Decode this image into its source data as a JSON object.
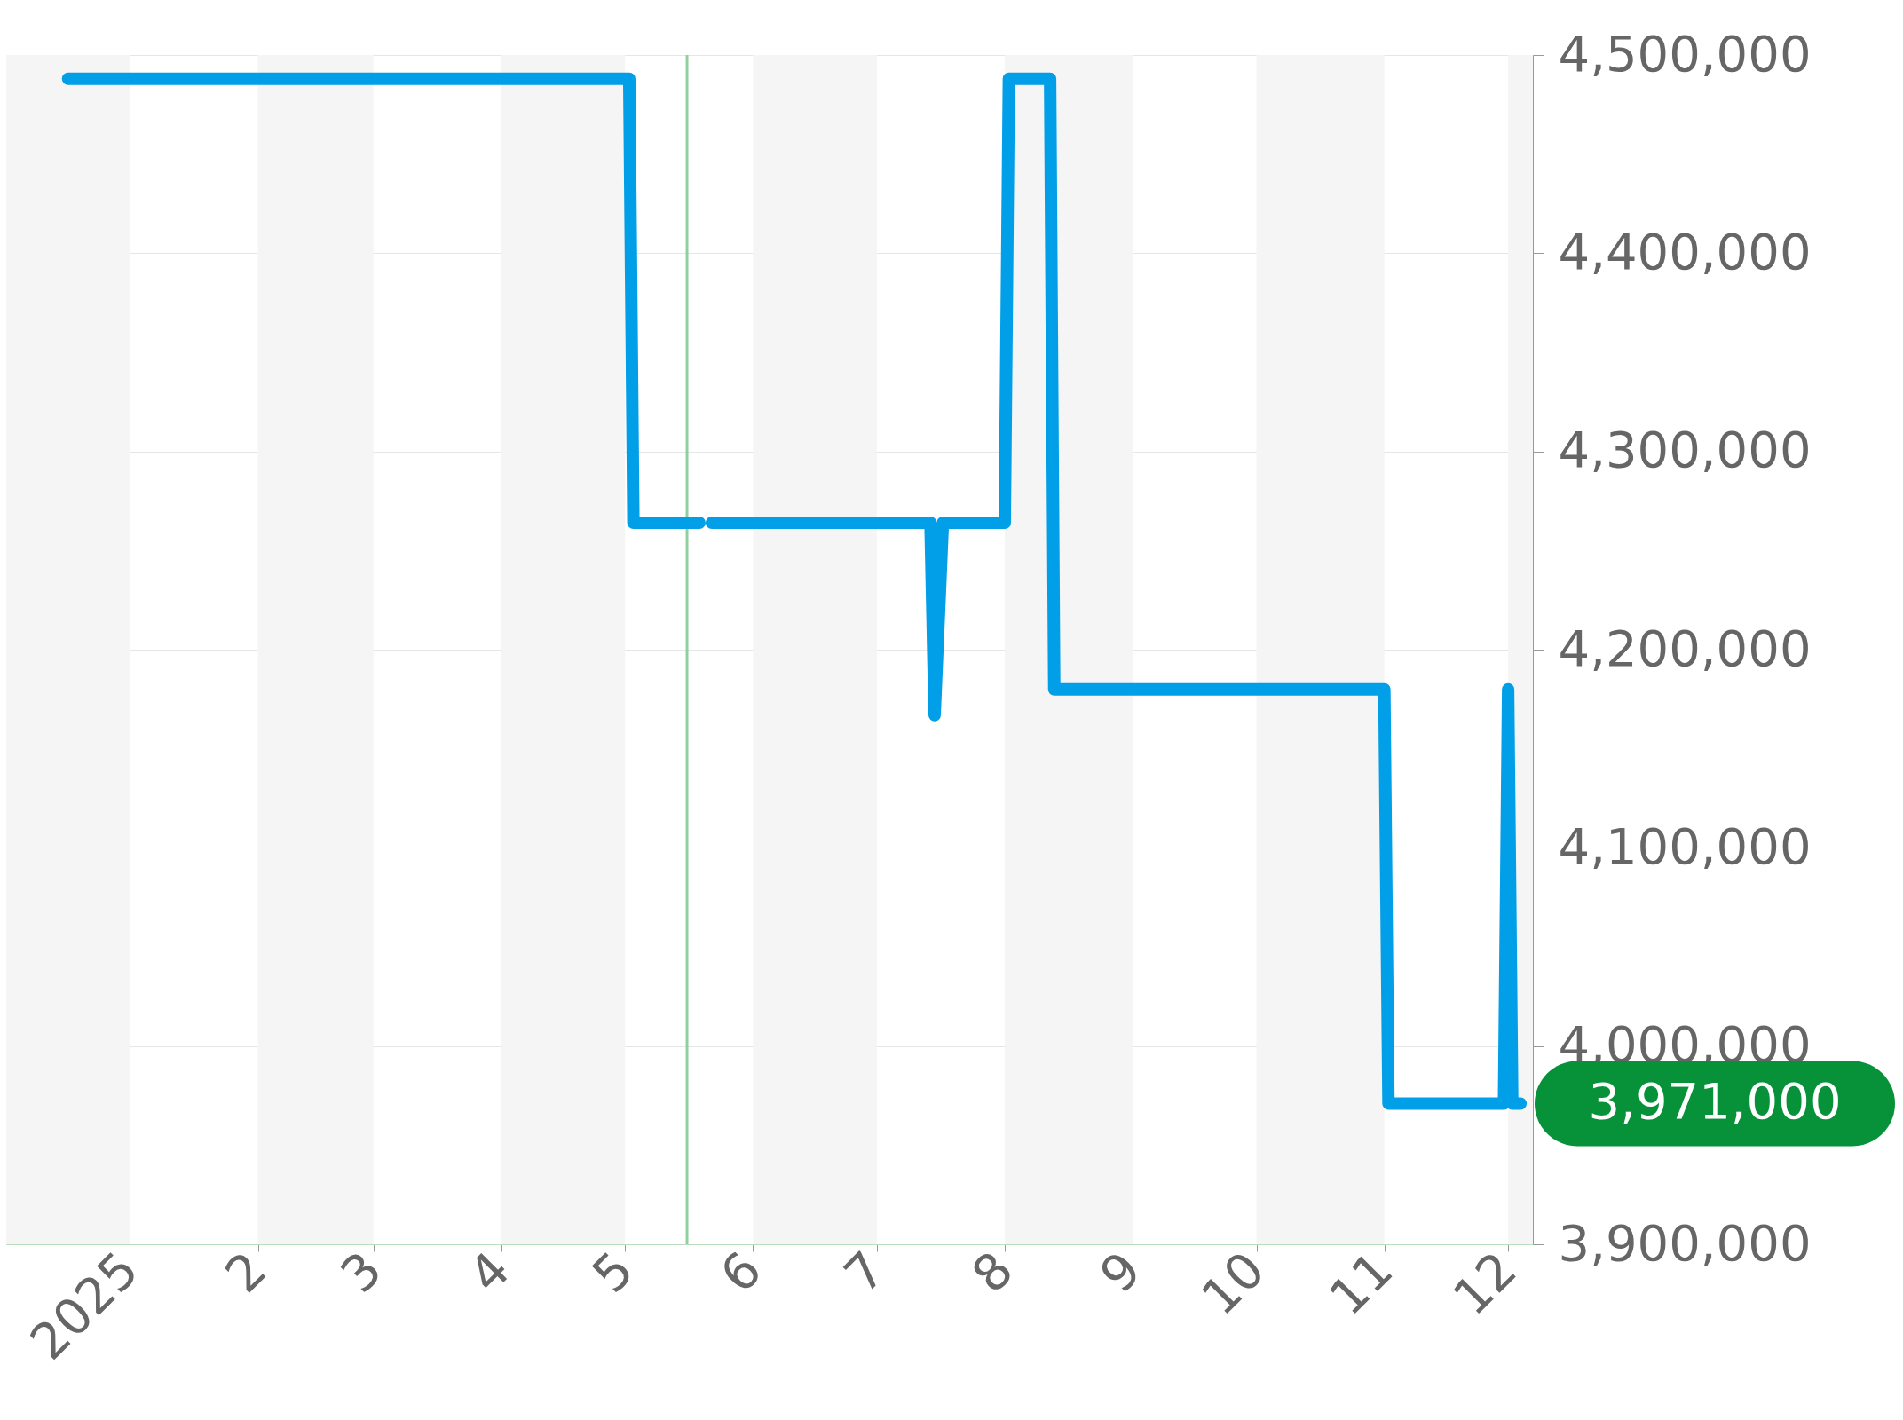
{
  "chart_data": {
    "type": "line",
    "x": [
      "2024-12-17",
      "2025-05-02",
      "2025-05-03",
      "2025-05-19",
      "2025-05-20",
      "2025-05-22",
      "2025-07-14",
      "2025-07-15",
      "2025-07-17",
      "2025-08-01",
      "2025-08-02",
      "2025-08-12",
      "2025-08-13",
      "2025-11-01",
      "2025-11-02",
      "2025-11-30",
      "2025-12-01",
      "2025-12-02",
      "2025-12-04"
    ],
    "series": [
      {
        "color": "#009fe8",
        "values": [
          4488000,
          4488000,
          4264000,
          4264000,
          null,
          4264000,
          4264000,
          4167000,
          4264000,
          4264000,
          4488000,
          4488000,
          4180000,
          4180000,
          3971000,
          3971000,
          4180000,
          3971000,
          3971000
        ]
      }
    ],
    "xlim": [
      "2024-12-02",
      "2025-12-07"
    ],
    "xticks": [
      {
        "value": "2025-01-01",
        "label": "2025"
      },
      {
        "value": "2025-02-01",
        "label": "2"
      },
      {
        "value": "2025-03-01",
        "label": "3"
      },
      {
        "value": "2025-04-01",
        "label": "4"
      },
      {
        "value": "2025-05-01",
        "label": "5"
      },
      {
        "value": "2025-06-01",
        "label": "6"
      },
      {
        "value": "2025-07-01",
        "label": "7"
      },
      {
        "value": "2025-08-01",
        "label": "8"
      },
      {
        "value": "2025-09-01",
        "label": "9"
      },
      {
        "value": "2025-10-01",
        "label": "10"
      },
      {
        "value": "2025-11-01",
        "label": "11"
      },
      {
        "value": "2025-12-01",
        "label": "12"
      }
    ],
    "ylim": [
      3900000,
      4500000
    ],
    "yticks": [
      {
        "value": 3900000,
        "label": "3,900,000"
      },
      {
        "value": 4000000,
        "label": "4,000,000"
      },
      {
        "value": 4100000,
        "label": "4,100,000"
      },
      {
        "value": 4200000,
        "label": "4,200,000"
      },
      {
        "value": 4300000,
        "label": "4,300,000"
      },
      {
        "value": 4400000,
        "label": "4,400,000"
      },
      {
        "value": 4500000,
        "label": "4,500,000"
      }
    ],
    "bands": [
      {
        "axis": "x",
        "from": "2024-12-02",
        "to": "2025-01-01",
        "color": "#f5f5f5"
      },
      {
        "axis": "x",
        "from": "2025-02-01",
        "to": "2025-03-01",
        "color": "#f5f5f5"
      },
      {
        "axis": "x",
        "from": "2025-04-01",
        "to": "2025-05-01",
        "color": "#f5f5f5"
      },
      {
        "axis": "x",
        "from": "2025-06-01",
        "to": "2025-07-01",
        "color": "#f5f5f5"
      },
      {
        "axis": "x",
        "from": "2025-08-01",
        "to": "2025-09-01",
        "color": "#f5f5f5"
      },
      {
        "axis": "x",
        "from": "2025-10-01",
        "to": "2025-11-01",
        "color": "#f5f5f5"
      },
      {
        "axis": "x",
        "from": "2025-12-01",
        "to": "2025-12-07",
        "color": "#f5f5f5"
      }
    ],
    "ref_lines": [
      {
        "axis": "x",
        "value": "2025-05-16",
        "color": "#8fd19e"
      }
    ],
    "annotations": [
      "3,971,000"
    ],
    "grid": "y",
    "marker": "none",
    "line_style": "solid"
  }
}
